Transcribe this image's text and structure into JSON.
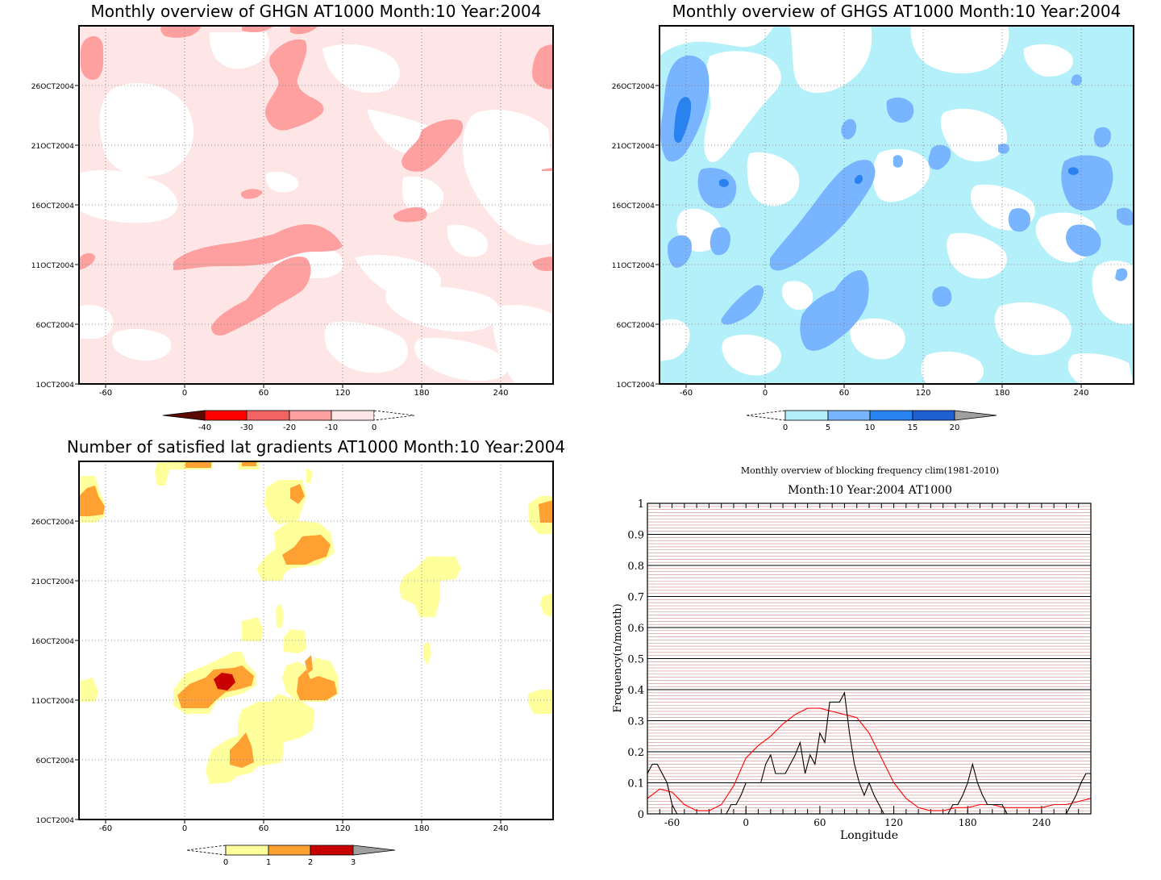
{
  "colors": {
    "red_levels": [
      "#5a0a00",
      "#ff0000",
      "#f26464",
      "#ffa0a0",
      "#ffe6e6",
      "#ffffff"
    ],
    "blue_levels": [
      "#ffffff",
      "#b4f0fa",
      "#78b4ff",
      "#2882f0",
      "#1e5fd2",
      "#a0a0a0"
    ],
    "yellow_levels": [
      "#ffffff",
      "#ffff9c",
      "#ffa032",
      "#c80000",
      "#a0a0a0"
    ],
    "clim_line": "#ff0000",
    "obs_line": "#000000"
  },
  "panels": {
    "ghgn": {
      "title": "Monthly overview of GHGN AT1000 Month:10 Year:2004",
      "colorbar_labels": [
        "-40",
        "-30",
        "-20",
        "-10",
        "0"
      ]
    },
    "ghgs": {
      "title": "Monthly overview of GHGS AT1000 Month:10 Year:2004",
      "colorbar_labels": [
        "0",
        "5",
        "10",
        "15",
        "20"
      ]
    },
    "lat": {
      "title": "Number of satisfied lat gradients AT1000 Month:10 Year:2004",
      "colorbar_labels": [
        "0",
        "1",
        "2",
        "3"
      ]
    },
    "freq": {
      "title": "Monthly overview of blocking frequency clim(1981-2010)",
      "subtitle": "Month:10 Year:2004  AT1000"
    }
  },
  "map_axes": {
    "x_ticks": [
      "-60",
      "0",
      "60",
      "120",
      "180",
      "240"
    ],
    "y_ticks": [
      "1OCT2004",
      "6OCT2004",
      "11OCT2004",
      "16OCT2004",
      "21OCT2004",
      "26OCT2004"
    ]
  },
  "chart_data": [
    {
      "type": "heatmap",
      "title": "Monthly overview of GHGN AT1000 Month:10 Year:2004",
      "xlim": [
        -80,
        280
      ],
      "ylim": [
        "1OCT2004",
        "31OCT2004"
      ],
      "x_ticks": [
        -60,
        0,
        60,
        120,
        180,
        240
      ],
      "y_ticks": [
        "1OCT2004",
        "6OCT2004",
        "11OCT2004",
        "16OCT2004",
        "21OCT2004",
        "26OCT2004"
      ],
      "levels": [
        -40,
        -30,
        -20,
        -10,
        0
      ],
      "grid": true
    },
    {
      "type": "heatmap",
      "title": "Monthly overview of GHGS AT1000 Month:10 Year:2004",
      "xlim": [
        -80,
        280
      ],
      "ylim": [
        "1OCT2004",
        "31OCT2004"
      ],
      "x_ticks": [
        -60,
        0,
        60,
        120,
        180,
        240
      ],
      "y_ticks": [
        "1OCT2004",
        "6OCT2004",
        "11OCT2004",
        "16OCT2004",
        "21OCT2004",
        "26OCT2004"
      ],
      "levels": [
        0,
        5,
        10,
        15,
        20
      ],
      "grid": true
    },
    {
      "type": "heatmap",
      "title": "Number of satisfied lat gradients AT1000 Month:10 Year:2004",
      "xlim": [
        -80,
        280
      ],
      "ylim": [
        "1OCT2004",
        "31OCT2004"
      ],
      "x_ticks": [
        -60,
        0,
        60,
        120,
        180,
        240
      ],
      "y_ticks": [
        "1OCT2004",
        "6OCT2004",
        "11OCT2004",
        "16OCT2004",
        "21OCT2004",
        "26OCT2004"
      ],
      "levels": [
        0,
        1,
        2,
        3
      ],
      "grid": true
    },
    {
      "type": "line",
      "title": "Monthly overview of blocking frequency clim(1981-2010)",
      "subtitle": "Month:10 Year:2004  AT1000",
      "xlabel": "Longitude",
      "ylabel": "Frequency(n/month)",
      "xlim": [
        -80,
        280
      ],
      "ylim": [
        0,
        1
      ],
      "x_ticks": [
        -60,
        0,
        60,
        120,
        180,
        240
      ],
      "y_ticks": [
        0,
        0.1,
        0.2,
        0.3,
        0.4,
        0.5,
        0.6,
        0.7,
        0.8,
        0.9,
        1
      ],
      "grid": true,
      "series": [
        {
          "color": "#ff0000",
          "x": [
            -80,
            -70,
            -60,
            -50,
            -40,
            -30,
            -20,
            -10,
            0,
            10,
            20,
            30,
            40,
            50,
            60,
            70,
            80,
            90,
            100,
            110,
            120,
            130,
            140,
            150,
            160,
            170,
            180,
            190,
            200,
            210,
            220,
            230,
            240,
            250,
            260,
            270,
            280
          ],
          "y": [
            0.05,
            0.08,
            0.07,
            0.03,
            0.01,
            0.01,
            0.03,
            0.09,
            0.18,
            0.22,
            0.25,
            0.29,
            0.32,
            0.34,
            0.34,
            0.33,
            0.32,
            0.31,
            0.26,
            0.18,
            0.1,
            0.05,
            0.02,
            0.01,
            0.01,
            0.02,
            0.02,
            0.03,
            0.03,
            0.02,
            0.02,
            0.02,
            0.02,
            0.03,
            0.03,
            0.04,
            0.05
          ]
        },
        {
          "color": "#000000",
          "x": [
            -80,
            -76,
            -72,
            -68,
            -64,
            -60,
            -56,
            -52,
            -48,
            -44,
            -40,
            -36,
            -32,
            -28,
            -24,
            -20,
            -16,
            -12,
            -8,
            -4,
            0,
            4,
            8,
            12,
            16,
            20,
            24,
            28,
            32,
            36,
            40,
            44,
            48,
            52,
            56,
            60,
            64,
            68,
            72,
            76,
            80,
            84,
            88,
            92,
            96,
            100,
            104,
            108,
            112,
            116,
            120,
            124,
            128,
            132,
            136,
            140,
            144,
            148,
            152,
            156,
            160,
            164,
            168,
            172,
            176,
            180,
            184,
            188,
            192,
            196,
            200,
            204,
            208,
            212,
            216,
            220,
            224,
            228,
            232,
            236,
            240,
            244,
            248,
            252,
            256,
            260,
            264,
            268,
            272,
            276,
            280
          ],
          "y": [
            0.13,
            0.16,
            0.16,
            0.13,
            0.1,
            0.03,
            0,
            0,
            0,
            0,
            0,
            0,
            0,
            0,
            0,
            0,
            0,
            0.03,
            0.03,
            0.06,
            0.1,
            0.1,
            0.1,
            0.1,
            0.16,
            0.19,
            0.13,
            0.13,
            0.13,
            0.16,
            0.19,
            0.23,
            0.13,
            0.19,
            0.16,
            0.26,
            0.23,
            0.36,
            0.36,
            0.36,
            0.39,
            0.26,
            0.16,
            0.1,
            0.06,
            0.1,
            0.06,
            0.03,
            0,
            0,
            0,
            0,
            0,
            0,
            0,
            0,
            0,
            0,
            0,
            0,
            0,
            0,
            0.03,
            0.03,
            0.06,
            0.1,
            0.16,
            0.1,
            0.06,
            0.03,
            0.03,
            0.03,
            0.03,
            0,
            0,
            0,
            0,
            0,
            0,
            0,
            0,
            0,
            0,
            0,
            0,
            0,
            0.03,
            0.06,
            0.1,
            0.13,
            0.13
          ]
        }
      ]
    }
  ]
}
